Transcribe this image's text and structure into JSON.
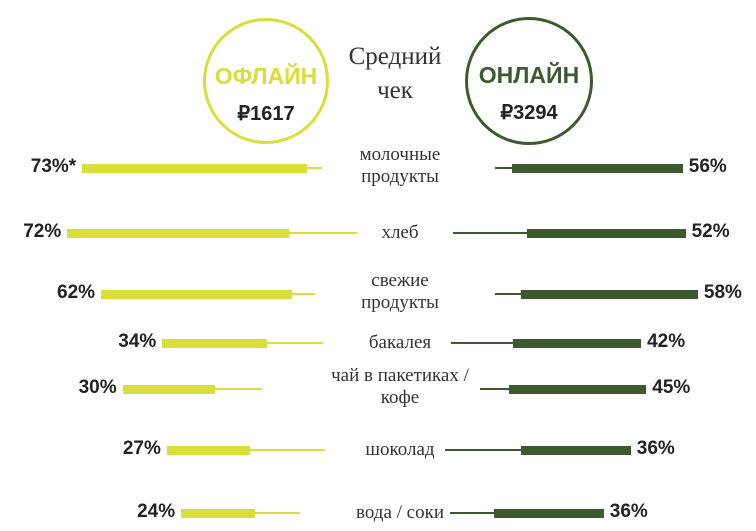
{
  "colors": {
    "offline": "#d9de3a",
    "online": "#3d5a2e"
  },
  "header": {
    "offline": {
      "label": "ОФЛАЙН",
      "value": "₽1617"
    },
    "online": {
      "label": "ОНЛАЙН",
      "value": "₽3294"
    },
    "center_line1": "Средний",
    "center_line2": "чек"
  },
  "chart_data": {
    "type": "bar",
    "orientation": "horizontal-butterfly",
    "series": [
      {
        "name": "ОФЛАЙН"
      },
      {
        "name": "ОНЛАЙН"
      }
    ],
    "categories": [
      "молочные продукты",
      "хлеб",
      "свежие продукты",
      "бакалея",
      "чай в пакетиках / кофе",
      "шоколад",
      "вода / соки"
    ],
    "rows": [
      {
        "lines": [
          "молочные",
          "продукты"
        ],
        "offline": 73,
        "offline_label": "73%*",
        "online": 56,
        "online_label": "56%"
      },
      {
        "lines": [
          "хлеб"
        ],
        "offline": 72,
        "offline_label": "72%",
        "online": 52,
        "online_label": "52%"
      },
      {
        "lines": [
          "свежие",
          "продукты"
        ],
        "offline": 62,
        "offline_label": "62%",
        "online": 58,
        "online_label": "58%"
      },
      {
        "lines": [
          "бакалея"
        ],
        "offline": 34,
        "offline_label": "34%",
        "online": 42,
        "online_label": "42%"
      },
      {
        "lines": [
          "чай в пакетиках /",
          "кофе"
        ],
        "offline": 30,
        "offline_label": "30%",
        "online": 45,
        "online_label": "45%"
      },
      {
        "lines": [
          "шоколад"
        ],
        "offline": 27,
        "offline_label": "27%",
        "online": 36,
        "online_label": "36%"
      },
      {
        "lines": [
          "вода / соки"
        ],
        "offline": 24,
        "offline_label": "24%",
        "online": 36,
        "online_label": "36%"
      }
    ]
  }
}
